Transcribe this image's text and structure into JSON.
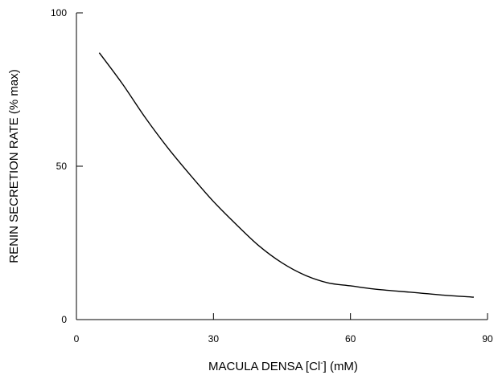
{
  "chart_data": {
    "type": "line",
    "title": "",
    "xlabel_main": "MACULA DENSA [Cl",
    "xlabel_sup": "-",
    "xlabel_tail": "] (mM)",
    "ylabel": "RENIN SECRETION RATE (% max)",
    "xlim": [
      0,
      90
    ],
    "ylim": [
      0,
      100
    ],
    "xticks": [
      0,
      30,
      60,
      90
    ],
    "yticks": [
      0,
      50,
      100
    ],
    "xtick_labels": [
      "0",
      "30",
      "60",
      "90"
    ],
    "ytick_labels": [
      "0",
      "50",
      "100"
    ],
    "grid": false,
    "line_color": "#000000",
    "series": [
      {
        "x": [
          5,
          10,
          15,
          20,
          25,
          30,
          35,
          40,
          45,
          50,
          55,
          60,
          65,
          70,
          75,
          80,
          87
        ],
        "y": [
          87,
          77,
          66,
          56,
          47,
          38.5,
          31,
          24,
          18.5,
          14.5,
          12,
          11,
          10,
          9.3,
          8.7,
          8,
          7.3
        ]
      }
    ]
  }
}
